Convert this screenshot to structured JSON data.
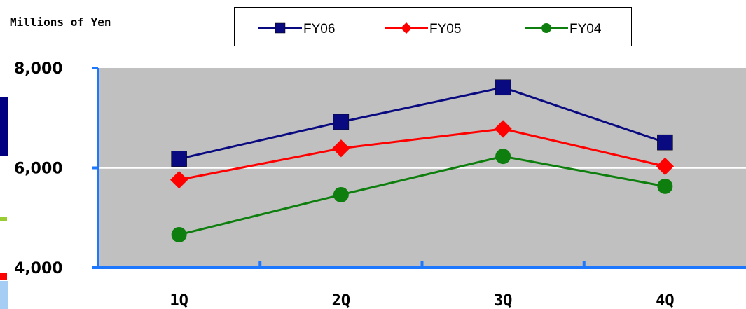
{
  "chart_data": {
    "type": "line",
    "ylabel": "Millions of Yen",
    "categories": [
      "1Q",
      "2Q",
      "3Q",
      "4Q"
    ],
    "ylim": [
      4000,
      8000
    ],
    "yticks": [
      "4,000",
      "6,000",
      "8,000"
    ],
    "grid": true,
    "legend_position": "top",
    "series": [
      {
        "name": "FY06",
        "color": "#0a0a80",
        "marker": "square",
        "values": [
          6180,
          6920,
          7610,
          6510
        ]
      },
      {
        "name": "FY05",
        "color": "#ff0000",
        "marker": "diamond",
        "values": [
          5760,
          6390,
          6780,
          6030
        ]
      },
      {
        "name": "FY04",
        "color": "#0e7f0e",
        "marker": "circle",
        "values": [
          4660,
          5460,
          6230,
          5630
        ]
      }
    ]
  },
  "colors": {
    "plot_background": "#c0c0c0",
    "axis": "#1e78ff",
    "gridline": "#ffffff",
    "side_strip_navy": "#000080",
    "side_strip_green": "#9acd32",
    "side_strip_red": "#ff0000",
    "side_strip_lightblue": "#a6cef5"
  }
}
